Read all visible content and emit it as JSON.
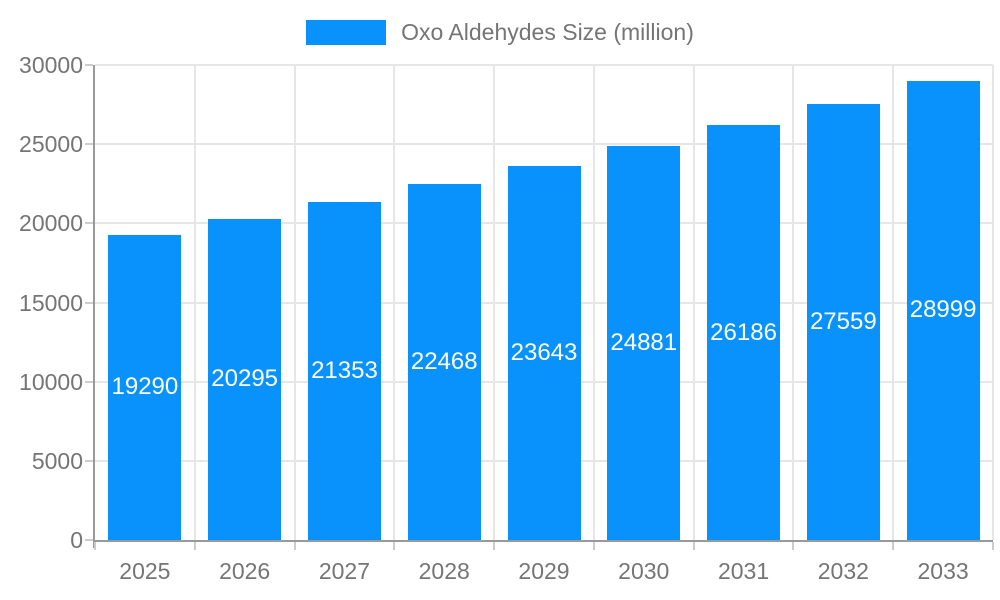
{
  "chart_data": {
    "type": "bar",
    "title": "",
    "legend": {
      "label": "Oxo Aldehydes Size (million)",
      "position": "top"
    },
    "categories": [
      "2025",
      "2026",
      "2027",
      "2028",
      "2029",
      "2030",
      "2031",
      "2032",
      "2033"
    ],
    "series": [
      {
        "name": "Oxo Aldehydes Size (million)",
        "values": [
          19290,
          20295,
          21353,
          22468,
          23643,
          24881,
          26186,
          27559,
          28999
        ]
      }
    ],
    "xlabel": "",
    "ylabel": "",
    "ylim": [
      0,
      30000
    ],
    "yticks": [
      0,
      5000,
      10000,
      15000,
      20000,
      25000,
      30000
    ],
    "grid": true,
    "colors": {
      "bar": "#0992FC",
      "value_label": "#FFFFFF",
      "axis_text": "#757575",
      "axis_line": "#999999",
      "gridline": "#E6E6E6",
      "tick": "#CCCCCC",
      "background": "#FFFFFF"
    }
  }
}
